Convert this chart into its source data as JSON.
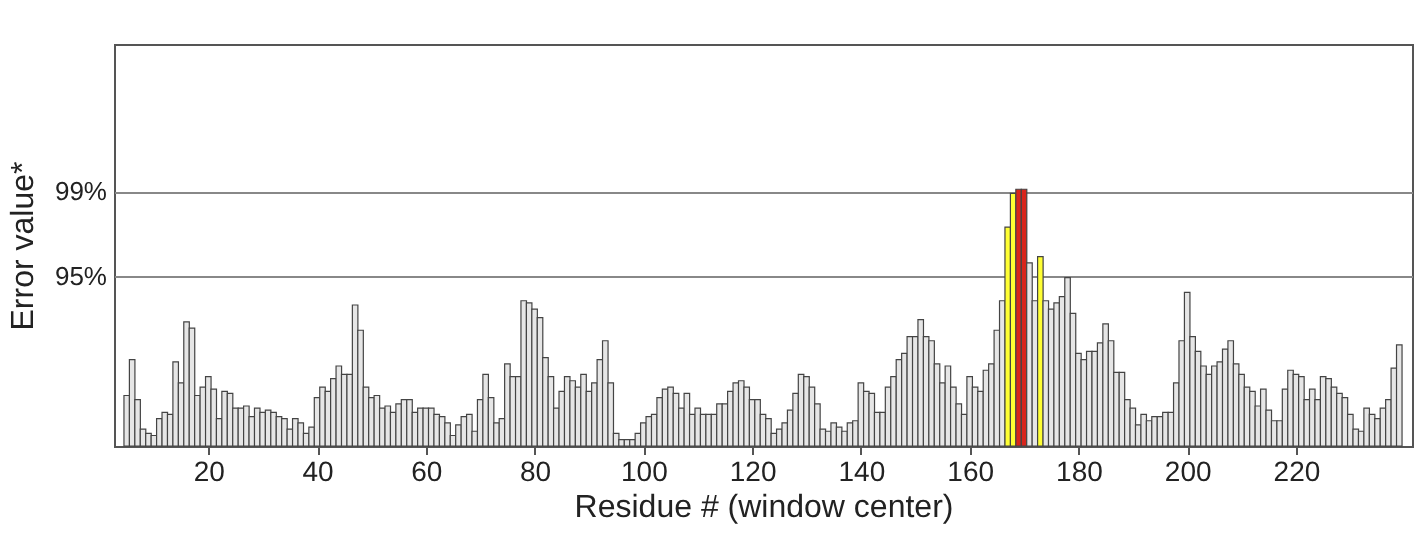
{
  "chart_data": {
    "type": "bar",
    "xlabel": "Residue # (window center)",
    "ylabel": "Error value*",
    "x": [
      5,
      6,
      7,
      8,
      9,
      10,
      11,
      12,
      13,
      14,
      15,
      16,
      17,
      18,
      19,
      20,
      21,
      22,
      23,
      24,
      25,
      26,
      27,
      28,
      29,
      30,
      31,
      32,
      33,
      34,
      35,
      36,
      37,
      38,
      39,
      40,
      41,
      42,
      43,
      44,
      45,
      46,
      47,
      48,
      49,
      50,
      51,
      52,
      53,
      54,
      55,
      56,
      57,
      58,
      59,
      60,
      61,
      62,
      63,
      64,
      65,
      66,
      67,
      68,
      69,
      70,
      71,
      72,
      73,
      74,
      75,
      76,
      77,
      78,
      79,
      80,
      81,
      82,
      83,
      84,
      85,
      86,
      87,
      88,
      89,
      90,
      91,
      92,
      93,
      94,
      95,
      96,
      97,
      98,
      99,
      100,
      101,
      102,
      103,
      104,
      105,
      106,
      107,
      108,
      109,
      110,
      111,
      112,
      113,
      114,
      115,
      116,
      117,
      118,
      119,
      120,
      121,
      122,
      123,
      124,
      125,
      126,
      127,
      128,
      129,
      130,
      131,
      132,
      133,
      134,
      135,
      136,
      137,
      138,
      139,
      140,
      141,
      142,
      143,
      144,
      145,
      146,
      147,
      148,
      149,
      150,
      151,
      152,
      153,
      154,
      155,
      156,
      157,
      158,
      159,
      160,
      161,
      162,
      163,
      164,
      165,
      166,
      167,
      168,
      169,
      170,
      171,
      172,
      173,
      174,
      175,
      176,
      177,
      178,
      179,
      180,
      181,
      182,
      183,
      184,
      185,
      186,
      187,
      188,
      189,
      190,
      191,
      192,
      193,
      194,
      195,
      196,
      197,
      198,
      199,
      200,
      201,
      202,
      203,
      204,
      205,
      206,
      207,
      208,
      209,
      210,
      211,
      212,
      213,
      214,
      215,
      216,
      217,
      218,
      219,
      220,
      221,
      222,
      223,
      224,
      225,
      226,
      227,
      228,
      229,
      230,
      231,
      232,
      233,
      234,
      235,
      236,
      237,
      238,
      239
    ],
    "values": [
      89.3,
      91.0,
      89.1,
      87.7,
      87.5,
      87.4,
      88.2,
      88.5,
      88.4,
      90.9,
      89.9,
      92.8,
      92.5,
      89.3,
      89.7,
      90.2,
      89.6,
      88.2,
      89.5,
      89.4,
      88.7,
      88.7,
      88.8,
      88.3,
      88.7,
      88.5,
      88.6,
      88.5,
      88.3,
      88.2,
      87.7,
      88.2,
      88.0,
      87.5,
      87.8,
      89.2,
      89.7,
      89.5,
      90.1,
      90.7,
      90.3,
      90.3,
      93.6,
      92.4,
      89.7,
      89.2,
      89.3,
      88.7,
      88.8,
      88.5,
      88.9,
      89.1,
      89.1,
      88.5,
      88.7,
      88.7,
      88.7,
      88.4,
      88.3,
      88.0,
      87.4,
      87.9,
      88.3,
      88.4,
      87.6,
      89.1,
      90.3,
      89.2,
      88.0,
      88.2,
      90.8,
      90.2,
      90.2,
      93.8,
      93.7,
      93.4,
      93.0,
      91.1,
      90.2,
      88.7,
      89.5,
      90.2,
      90.0,
      89.7,
      90.3,
      89.5,
      89.9,
      91.0,
      91.9,
      89.9,
      87.5,
      87.2,
      87.2,
      87.2,
      87.5,
      88.0,
      88.3,
      88.4,
      89.2,
      89.6,
      89.7,
      89.4,
      88.7,
      89.4,
      88.4,
      88.7,
      88.4,
      88.4,
      88.4,
      88.9,
      88.9,
      89.5,
      89.9,
      90.0,
      89.7,
      89.1,
      89.1,
      88.4,
      88.2,
      87.5,
      87.7,
      88.0,
      88.6,
      89.4,
      90.3,
      90.2,
      89.7,
      88.9,
      87.7,
      87.6,
      88.0,
      87.8,
      87.6,
      88.0,
      88.1,
      89.9,
      89.5,
      89.4,
      88.5,
      88.5,
      89.7,
      90.2,
      91.0,
      91.3,
      92.1,
      92.1,
      92.9,
      92.1,
      91.9,
      90.8,
      89.9,
      90.7,
      89.7,
      88.9,
      88.4,
      90.2,
      89.7,
      89.5,
      90.5,
      90.8,
      92.4,
      93.8,
      97.3,
      98.9,
      99.1,
      99.1,
      95.6,
      93.8,
      95.9,
      93.8,
      93.4,
      93.7,
      94.0,
      94.9,
      93.2,
      91.3,
      91.0,
      91.4,
      91.4,
      91.8,
      92.7,
      91.9,
      90.4,
      90.4,
      89.1,
      88.7,
      87.9,
      88.4,
      88.1,
      88.3,
      88.3,
      88.5,
      88.5,
      89.9,
      91.9,
      94.2,
      92.1,
      91.4,
      90.7,
      90.3,
      90.7,
      90.9,
      91.5,
      91.9,
      90.8,
      90.3,
      89.7,
      89.5,
      88.8,
      89.6,
      88.6,
      88.1,
      88.1,
      89.6,
      90.5,
      90.3,
      90.2,
      89.1,
      89.6,
      89.1,
      90.2,
      90.1,
      89.7,
      89.4,
      89.2,
      88.4,
      87.7,
      87.6,
      88.7,
      88.4,
      88.2,
      88.7,
      89.1,
      90.6,
      91.7
    ],
    "colors": [
      "#e6e6e6",
      "#e6e6e6",
      "#e6e6e6",
      "#e6e6e6",
      "#e6e6e6",
      "#e6e6e6",
      "#e6e6e6",
      "#e6e6e6",
      "#e6e6e6",
      "#e6e6e6",
      "#e6e6e6",
      "#e6e6e6",
      "#e6e6e6",
      "#e6e6e6",
      "#e6e6e6",
      "#e6e6e6",
      "#e6e6e6",
      "#e6e6e6",
      "#e6e6e6",
      "#e6e6e6",
      "#e6e6e6",
      "#e6e6e6",
      "#e6e6e6",
      "#e6e6e6",
      "#e6e6e6",
      "#e6e6e6",
      "#e6e6e6",
      "#e6e6e6",
      "#e6e6e6",
      "#e6e6e6",
      "#e6e6e6",
      "#e6e6e6",
      "#e6e6e6",
      "#e6e6e6",
      "#e6e6e6",
      "#e6e6e6",
      "#e6e6e6",
      "#e6e6e6",
      "#e6e6e6",
      "#e6e6e6",
      "#e6e6e6",
      "#e6e6e6",
      "#e6e6e6",
      "#e6e6e6",
      "#e6e6e6",
      "#e6e6e6",
      "#e6e6e6",
      "#e6e6e6",
      "#e6e6e6",
      "#e6e6e6",
      "#e6e6e6",
      "#e6e6e6",
      "#e6e6e6",
      "#e6e6e6",
      "#e6e6e6",
      "#e6e6e6",
      "#e6e6e6",
      "#e6e6e6",
      "#e6e6e6",
      "#e6e6e6",
      "#e6e6e6",
      "#e6e6e6",
      "#e6e6e6",
      "#e6e6e6",
      "#e6e6e6",
      "#e6e6e6",
      "#e6e6e6",
      "#e6e6e6",
      "#e6e6e6",
      "#e6e6e6",
      "#e6e6e6",
      "#e6e6e6",
      "#e6e6e6",
      "#e6e6e6",
      "#e6e6e6",
      "#e6e6e6",
      "#e6e6e6",
      "#e6e6e6",
      "#e6e6e6",
      "#e6e6e6",
      "#e6e6e6",
      "#e6e6e6",
      "#e6e6e6",
      "#e6e6e6",
      "#e6e6e6",
      "#e6e6e6",
      "#e6e6e6",
      "#e6e6e6",
      "#e6e6e6",
      "#e6e6e6",
      "#e6e6e6",
      "#e6e6e6",
      "#e6e6e6",
      "#e6e6e6",
      "#e6e6e6",
      "#e6e6e6",
      "#e6e6e6",
      "#e6e6e6",
      "#e6e6e6",
      "#e6e6e6",
      "#e6e6e6",
      "#e6e6e6",
      "#e6e6e6",
      "#e6e6e6",
      "#e6e6e6",
      "#e6e6e6",
      "#e6e6e6",
      "#e6e6e6",
      "#e6e6e6",
      "#e6e6e6",
      "#e6e6e6",
      "#e6e6e6",
      "#e6e6e6",
      "#e6e6e6",
      "#e6e6e6",
      "#e6e6e6",
      "#e6e6e6",
      "#e6e6e6",
      "#e6e6e6",
      "#e6e6e6",
      "#e6e6e6",
      "#e6e6e6",
      "#e6e6e6",
      "#e6e6e6",
      "#e6e6e6",
      "#e6e6e6",
      "#e6e6e6",
      "#e6e6e6",
      "#e6e6e6",
      "#e6e6e6",
      "#e6e6e6",
      "#e6e6e6",
      "#e6e6e6",
      "#e6e6e6",
      "#e6e6e6",
      "#e6e6e6",
      "#e6e6e6",
      "#e6e6e6",
      "#e6e6e6",
      "#e6e6e6",
      "#e6e6e6",
      "#e6e6e6",
      "#e6e6e6",
      "#e6e6e6",
      "#e6e6e6",
      "#e6e6e6",
      "#e6e6e6",
      "#e6e6e6",
      "#e6e6e6",
      "#e6e6e6",
      "#e6e6e6",
      "#e6e6e6",
      "#e6e6e6",
      "#e6e6e6",
      "#e6e6e6",
      "#e6e6e6",
      "#e6e6e6",
      "#e6e6e6",
      "#e6e6e6",
      "#e6e6e6",
      "#e6e6e6",
      "#e6e6e6",
      "#ffff33",
      "#ffff33",
      "#d9251c",
      "#d9251c",
      "#e6e6e6",
      "#e6e6e6",
      "#ffff33",
      "#e6e6e6",
      "#e6e6e6",
      "#e6e6e6",
      "#e6e6e6",
      "#e6e6e6",
      "#e6e6e6",
      "#e6e6e6",
      "#e6e6e6",
      "#e6e6e6",
      "#e6e6e6",
      "#e6e6e6",
      "#e6e6e6",
      "#e6e6e6",
      "#e6e6e6",
      "#e6e6e6",
      "#e6e6e6",
      "#e6e6e6",
      "#e6e6e6",
      "#e6e6e6",
      "#e6e6e6",
      "#e6e6e6",
      "#e6e6e6",
      "#e6e6e6",
      "#e6e6e6",
      "#e6e6e6",
      "#e6e6e6",
      "#e6e6e6",
      "#e6e6e6",
      "#e6e6e6",
      "#e6e6e6",
      "#e6e6e6",
      "#e6e6e6",
      "#e6e6e6",
      "#e6e6e6",
      "#e6e6e6",
      "#e6e6e6",
      "#e6e6e6",
      "#e6e6e6",
      "#e6e6e6",
      "#e6e6e6",
      "#e6e6e6",
      "#e6e6e6",
      "#e6e6e6",
      "#e6e6e6",
      "#e6e6e6",
      "#e6e6e6",
      "#e6e6e6",
      "#e6e6e6",
      "#e6e6e6",
      "#e6e6e6",
      "#e6e6e6",
      "#e6e6e6",
      "#e6e6e6",
      "#e6e6e6",
      "#e6e6e6",
      "#e6e6e6",
      "#e6e6e6",
      "#e6e6e6",
      "#e6e6e6",
      "#e6e6e6",
      "#e6e6e6",
      "#e6e6e6",
      "#e6e6e6",
      "#e6e6e6",
      "#e6e6e6",
      "#e6e6e6"
    ],
    "xlim": [
      4.5,
      239.5
    ],
    "xticks": [
      20,
      40,
      60,
      80,
      100,
      120,
      140,
      160,
      180,
      200,
      220
    ],
    "ylim": [
      86.9,
      106
    ],
    "yticks": [
      {
        "value": 95,
        "label": "95%"
      },
      {
        "value": 99,
        "label": "99%"
      }
    ],
    "grid": "y"
  }
}
